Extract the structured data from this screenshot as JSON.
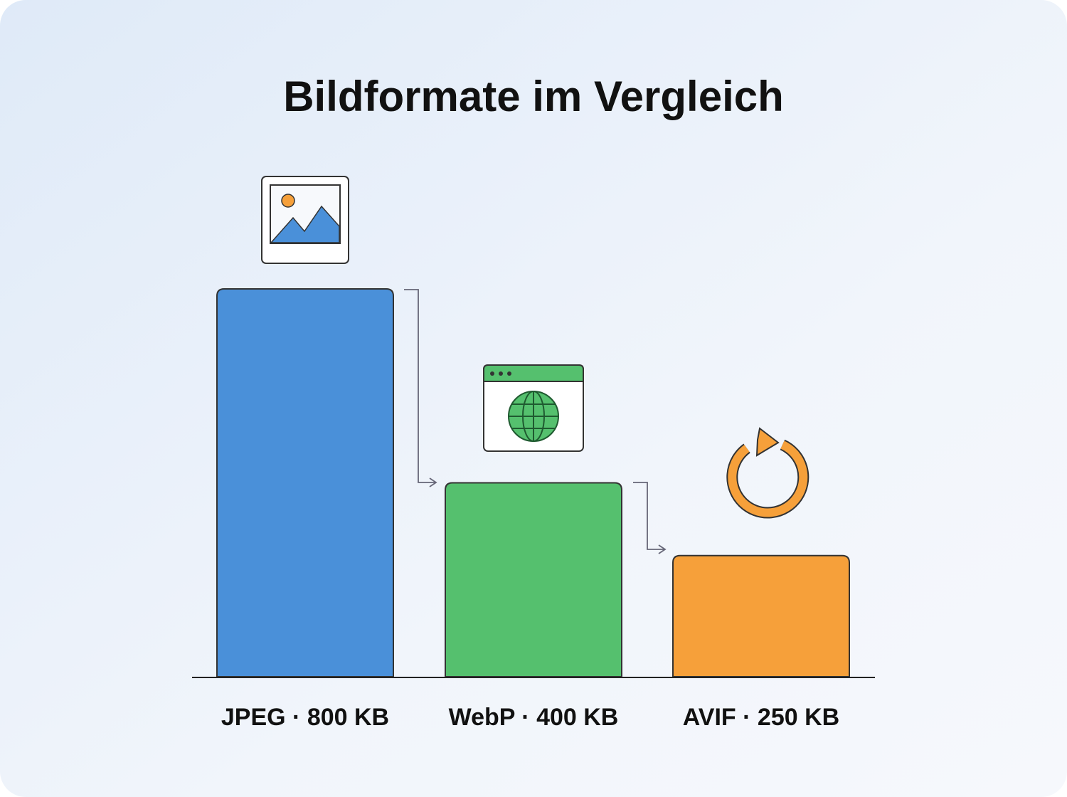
{
  "chart_data": {
    "type": "bar",
    "title": "Bildformate im Vergleich",
    "categories": [
      "JPEG · 800 KB",
      "WebP · 400 KB",
      "AVIF · 250 KB"
    ],
    "values": [
      800,
      400,
      250
    ],
    "colors": [
      "#4a90d9",
      "#55c06e",
      "#f6a03a"
    ]
  }
}
